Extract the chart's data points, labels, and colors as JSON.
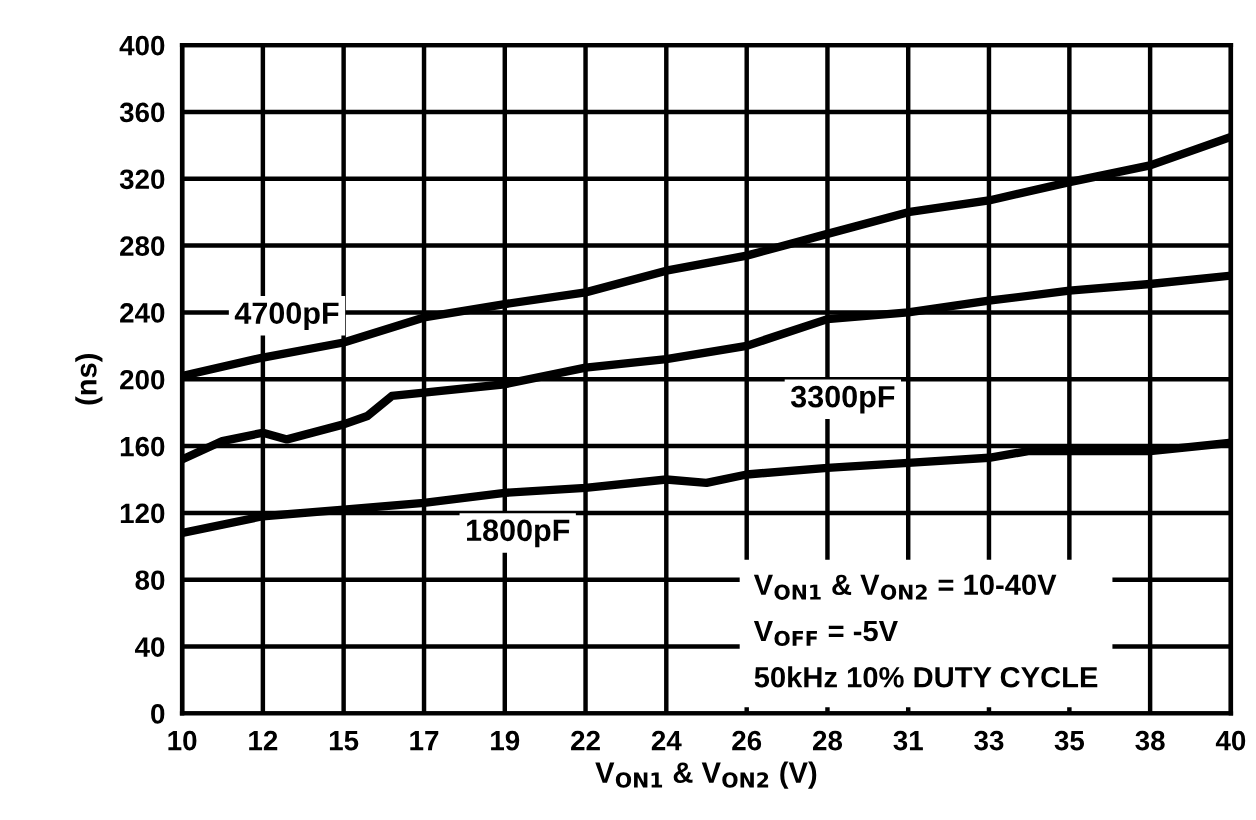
{
  "chart_data": {
    "type": "line",
    "xlabel": "V$_{ON1}$ & V$_{ON2}$ (V)",
    "ylabel": "(ns)",
    "xlim": [
      10,
      40
    ],
    "ylim": [
      0,
      400
    ],
    "xticks": [
      10,
      {
        "value": 12.31,
        "label": "12"
      },
      {
        "value": 14.62,
        "label": "15"
      },
      {
        "value": 16.92,
        "label": "17"
      },
      {
        "value": 19.23,
        "label": "19"
      },
      {
        "value": 21.54,
        "label": "22"
      },
      {
        "value": 23.85,
        "label": "24"
      },
      {
        "value": 26.15,
        "label": "26"
      },
      {
        "value": 28.46,
        "label": "28"
      },
      {
        "value": 30.77,
        "label": "31"
      },
      {
        "value": 33.08,
        "label": "33"
      },
      {
        "value": 35.38,
        "label": "35"
      },
      {
        "value": 37.69,
        "label": "38"
      },
      40
    ],
    "yticks": [
      0,
      40,
      80,
      120,
      160,
      200,
      240,
      280,
      320,
      360,
      400
    ],
    "grid": true,
    "legend": false,
    "marker": "none",
    "line_style": "solid",
    "series": [
      {
        "name": "4700pF",
        "color": "#000000",
        "x": [
          10,
          12.31,
          14.62,
          16.92,
          19.23,
          21.54,
          23.85,
          26.15,
          28.46,
          30.77,
          33.08,
          35.38,
          37.69,
          40
        ],
        "values": [
          202,
          213,
          222,
          237,
          245,
          252,
          265,
          274,
          287,
          300,
          307,
          318,
          328,
          345
        ]
      },
      {
        "name": "3300pF",
        "color": "#000000",
        "x": [
          10,
          11.15,
          12.31,
          13.0,
          14.62,
          15.3,
          16.0,
          16.92,
          19.23,
          21.54,
          23.85,
          26.15,
          27.3,
          28.46,
          30.77,
          33.08,
          35.38,
          37.69,
          40
        ],
        "values": [
          152,
          163,
          168,
          164,
          173,
          178,
          190,
          192,
          197,
          207,
          212,
          220,
          228,
          236,
          240,
          247,
          253,
          257,
          262
        ]
      },
      {
        "name": "1800pF",
        "color": "#000000",
        "x": [
          10,
          12.31,
          14.62,
          16.92,
          19.23,
          21.54,
          23.85,
          25.0,
          26.15,
          28.46,
          30.77,
          33.08,
          34.2,
          35.38,
          37.69,
          40
        ],
        "values": [
          108,
          118,
          122,
          126,
          132,
          135,
          140,
          138,
          143,
          147,
          150,
          153,
          157,
          157,
          157,
          162
        ]
      }
    ],
    "annotations": [
      "V$_{ON1}$ & V$_{ON2}$ = 10-40V",
      "V$_{OFF}$ = -5V",
      "50kHz 10% DUTY CYCLE"
    ]
  }
}
